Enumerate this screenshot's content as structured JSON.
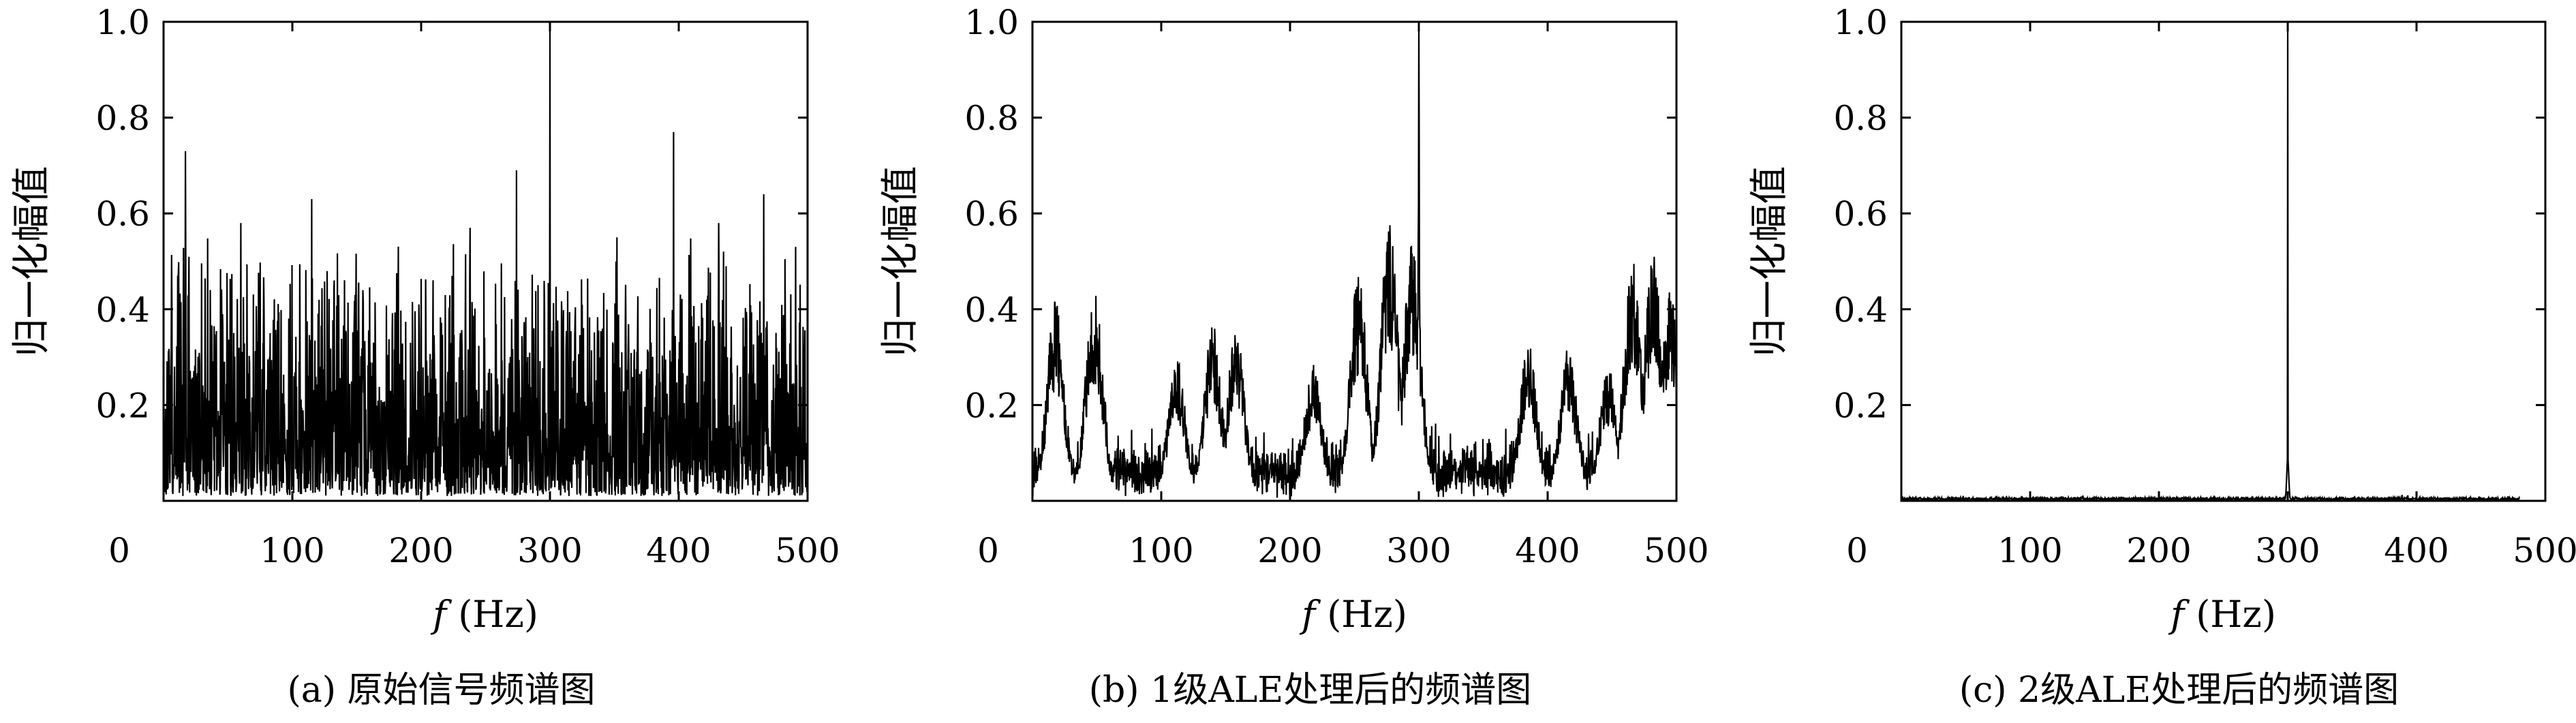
{
  "figure": {
    "panels": [
      {
        "caption": "(a) 原始信号频谱图"
      },
      {
        "caption": "(b) 1级ALE处理后的频谱图"
      },
      {
        "caption": "(c) 2级ALE处理后的频谱图"
      }
    ]
  },
  "chart_data": [
    {
      "type": "line",
      "title": "",
      "caption": "(a) 原始信号频谱图",
      "xlabel_var": "f",
      "xlabel_unit": "(Hz)",
      "ylabel": "归一化幅值",
      "xlim": [
        0,
        500
      ],
      "ylim": [
        0,
        1.0
      ],
      "xticks": [
        0,
        100,
        200,
        300,
        400,
        500
      ],
      "yticks": [
        0.2,
        0.4,
        0.6,
        0.8,
        1.0
      ],
      "grid": false,
      "noise": {
        "base": 0.2,
        "spread": 0.35,
        "floor": 0.01,
        "max": 0.62
      },
      "peaks": [
        {
          "x": 300,
          "y": 1.0
        },
        {
          "x": 17,
          "y": 0.73
        },
        {
          "x": 115,
          "y": 0.63
        },
        {
          "x": 274,
          "y": 0.69
        },
        {
          "x": 396,
          "y": 0.77
        },
        {
          "x": 466,
          "y": 0.64
        },
        {
          "x": 60,
          "y": 0.58
        },
        {
          "x": 238,
          "y": 0.57
        },
        {
          "x": 352,
          "y": 0.55
        },
        {
          "x": 431,
          "y": 0.58
        }
      ]
    },
    {
      "type": "line",
      "title": "",
      "caption": "(b) 1级ALE处理后的频谱图",
      "xlabel_var": "f",
      "xlabel_unit": "(Hz)",
      "ylabel": "归一化幅值",
      "xlim": [
        0,
        500
      ],
      "ylim": [
        0,
        1.0
      ],
      "xticks": [
        0,
        100,
        200,
        300,
        400,
        500
      ],
      "yticks": [
        0.2,
        0.4,
        0.6,
        0.8,
        1.0
      ],
      "grid": false,
      "clusters": [
        {
          "x": 18,
          "y": 0.42
        },
        {
          "x": 48,
          "y": 0.44
        },
        {
          "x": 112,
          "y": 0.3
        },
        {
          "x": 140,
          "y": 0.37
        },
        {
          "x": 158,
          "y": 0.36
        },
        {
          "x": 218,
          "y": 0.29
        },
        {
          "x": 253,
          "y": 0.47
        },
        {
          "x": 277,
          "y": 0.58
        },
        {
          "x": 295,
          "y": 0.54
        },
        {
          "x": 300,
          "y": 1.0
        },
        {
          "x": 385,
          "y": 0.33
        },
        {
          "x": 416,
          "y": 0.32
        },
        {
          "x": 447,
          "y": 0.28
        },
        {
          "x": 466,
          "y": 0.51
        },
        {
          "x": 482,
          "y": 0.52
        },
        {
          "x": 495,
          "y": 0.44
        }
      ],
      "noise": {
        "base": 0.07,
        "spread": 0.09,
        "floor": 0.005
      }
    },
    {
      "type": "line",
      "title": "",
      "caption": "(c) 2级ALE处理后的频谱图",
      "xlabel_var": "f",
      "xlabel_unit": "(Hz)",
      "ylabel": "归一化幅值",
      "xlim": [
        0,
        500
      ],
      "ylim": [
        0,
        1.0
      ],
      "xticks": [
        0,
        100,
        200,
        300,
        400,
        500
      ],
      "yticks": [
        0.2,
        0.4,
        0.6,
        0.8,
        1.0
      ],
      "grid": false,
      "peaks": [
        {
          "x": 300,
          "y": 1.0
        }
      ],
      "noise": {
        "base": 0.006,
        "spread": 0.006,
        "floor": 0.001
      },
      "x_end": 480
    }
  ]
}
